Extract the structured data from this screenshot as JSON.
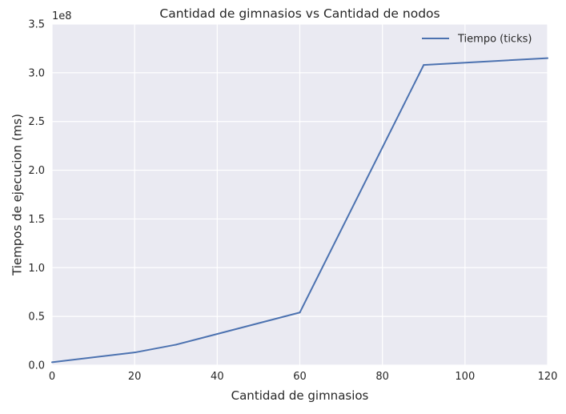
{
  "chart_data": {
    "type": "line",
    "title": "Cantidad de gimnasios vs Cantidad de nodos",
    "xlabel": "Cantidad de gimnasios",
    "ylabel": "Tiempos de ejecucion (ms)",
    "y_offset_label": "1e8",
    "xlim": [
      0,
      120
    ],
    "ylim": [
      0,
      350000000
    ],
    "x_ticks": [
      0,
      20,
      40,
      60,
      80,
      100,
      120
    ],
    "x_tick_labels": [
      "0",
      "20",
      "40",
      "60",
      "80",
      "100",
      "120"
    ],
    "y_ticks": [
      0,
      50000000,
      100000000,
      150000000,
      200000000,
      250000000,
      300000000,
      350000000
    ],
    "y_tick_labels": [
      "0.0",
      "0.5",
      "1.0",
      "1.5",
      "2.0",
      "2.5",
      "3.0",
      "3.5"
    ],
    "grid": true,
    "legend_position": "top-right",
    "series": [
      {
        "name": "Tiempo (ticks)",
        "color": "#4c72b0",
        "x": [
          0,
          20,
          30,
          60,
          90,
          120
        ],
        "y": [
          3000000,
          13000000,
          21000000,
          54000000,
          308000000,
          315000000
        ]
      }
    ]
  }
}
